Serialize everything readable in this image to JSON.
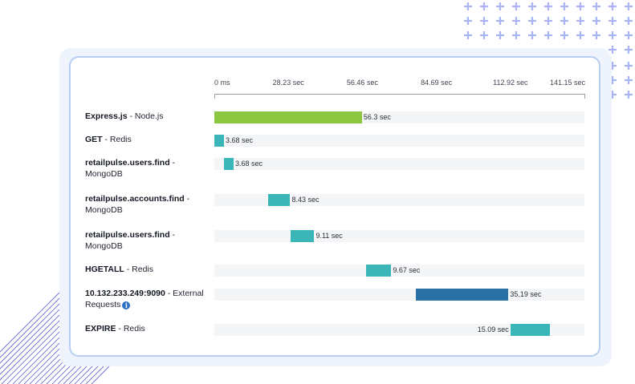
{
  "timeline": {
    "axis_ticks": [
      "0 ms",
      "28.23 sec",
      "56.46 sec",
      "84.69 sec",
      "112.92 sec",
      "141.15 sec"
    ],
    "axis_max_sec": 141.15
  },
  "spans": [
    {
      "service": "Express.js",
      "sep": " - ",
      "kind": "Node.js",
      "kind2": "",
      "start_sec": 0.0,
      "duration_sec": 56.3,
      "duration_label": "56.3 sec",
      "color": "#8dc63f",
      "label_side": "right",
      "info": false
    },
    {
      "service": "GET",
      "sep": " - ",
      "kind": "Redis",
      "kind2": "",
      "start_sec": 0.0,
      "duration_sec": 3.68,
      "duration_label": "3.68 sec",
      "color": "#3ab5b8",
      "label_side": "right",
      "info": false
    },
    {
      "service": "retailpulse.users.find",
      "sep": " -",
      "kind": "",
      "kind2": "MongoDB",
      "start_sec": 3.68,
      "duration_sec": 3.68,
      "duration_label": "3.68 sec",
      "color": "#3ab5b8",
      "label_side": "right",
      "info": false
    },
    {
      "service": "retailpulse.accounts.find",
      "sep": " -",
      "kind": "",
      "kind2": "MongoDB",
      "start_sec": 20.5,
      "duration_sec": 8.43,
      "duration_label": "8.43 sec",
      "color": "#3ab5b8",
      "label_side": "right",
      "info": false
    },
    {
      "service": "retailpulse.users.find",
      "sep": " -",
      "kind": "",
      "kind2": "MongoDB",
      "start_sec": 29.0,
      "duration_sec": 9.11,
      "duration_label": "9.11 sec",
      "color": "#3ab5b8",
      "label_side": "right",
      "info": false
    },
    {
      "service": "HGETALL",
      "sep": " - ",
      "kind": "Redis",
      "kind2": "",
      "start_sec": 57.8,
      "duration_sec": 9.67,
      "duration_label": "9.67 sec",
      "color": "#3ab5b8",
      "label_side": "right",
      "info": false
    },
    {
      "service": "10.132.233.249:9090",
      "sep": " - ",
      "kind": "External",
      "kind2": "Requests",
      "start_sec": 77.0,
      "duration_sec": 35.19,
      "duration_label": "35.19 sec",
      "color": "#2a72a6",
      "label_side": "right",
      "info": true
    },
    {
      "service": "EXPIRE",
      "sep": " - ",
      "kind": "Redis",
      "kind2": "",
      "start_sec": 112.9,
      "duration_sec": 15.09,
      "duration_label": "15.09 sec",
      "color": "#3ab5b8",
      "label_side": "left",
      "info": false
    }
  ],
  "colors": {
    "accent_plus": "#a9b4f5",
    "stripe": "#5a5fd6",
    "card_border": "#b7cdf1",
    "panel_bg": "#eef3fc"
  }
}
